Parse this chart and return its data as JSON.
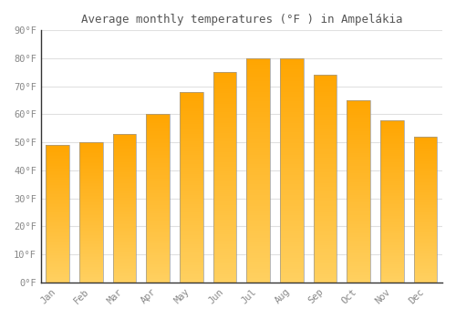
{
  "months": [
    "Jan",
    "Feb",
    "Mar",
    "Apr",
    "May",
    "Jun",
    "Jul",
    "Aug",
    "Sep",
    "Oct",
    "Nov",
    "Dec"
  ],
  "values": [
    49,
    50,
    53,
    60,
    68,
    75,
    80,
    80,
    74,
    65,
    58,
    52
  ],
  "bar_color_main": "#FFA500",
  "bar_color_light": "#FFD060",
  "bar_edge_color": "#999999",
  "title": "Average monthly temperatures (°F ) in Ampelákia",
  "ylim": [
    0,
    90
  ],
  "yticks": [
    0,
    10,
    20,
    30,
    40,
    50,
    60,
    70,
    80,
    90
  ],
  "ytick_labels": [
    "0°F",
    "10°F",
    "20°F",
    "30°F",
    "40°F",
    "50°F",
    "60°F",
    "70°F",
    "80°F",
    "90°F"
  ],
  "background_color": "#FFFFFF",
  "grid_color": "#E0E0E0",
  "title_fontsize": 9,
  "tick_fontsize": 7.5,
  "tick_color": "#888888",
  "title_color": "#555555",
  "bar_width": 0.7
}
